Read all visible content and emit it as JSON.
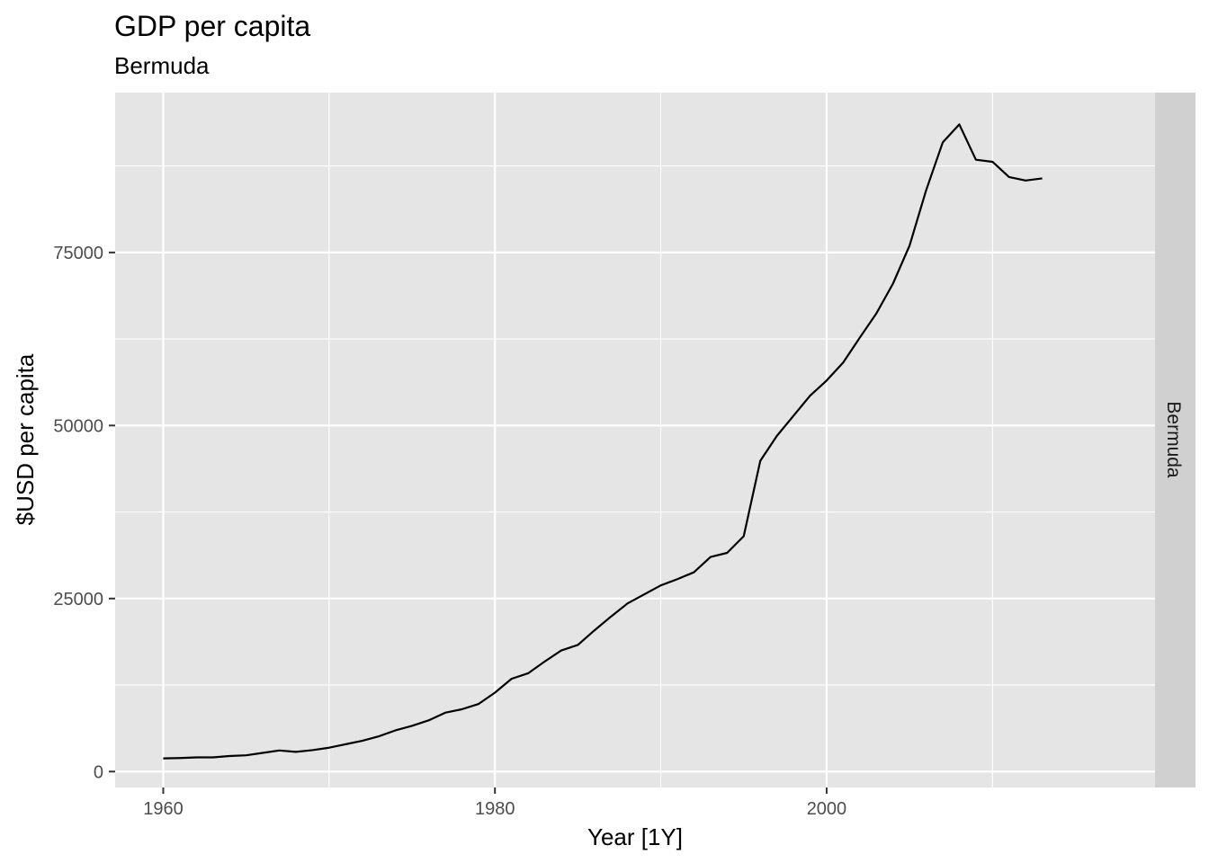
{
  "chart_data": {
    "type": "line",
    "title": "GDP per capita",
    "subtitle": "Bermuda",
    "xlabel": "Year [1Y]",
    "ylabel": "$USD per capita",
    "facet_label": "Bermuda",
    "xlim": [
      1957.1,
      2019.8
    ],
    "ylim": [
      -2300,
      98100
    ],
    "x_ticks": [
      1960,
      1980,
      2000
    ],
    "x_tick_labels": [
      "1960",
      "1980",
      "2000"
    ],
    "x_minor_ticks": [
      1970,
      1990,
      2010
    ],
    "y_ticks": [
      0,
      25000,
      50000,
      75000
    ],
    "y_tick_labels": [
      "0",
      "25000",
      "50000",
      "75000"
    ],
    "y_minor_ticks": [
      12500,
      37500,
      62500,
      87500
    ],
    "grid": true,
    "colors": {
      "panel_bg": "#e5e5e5",
      "grid": "#ffffff",
      "strip_bg": "#d0d0d0",
      "line": "#000000",
      "tick": "#333333"
    },
    "series": [
      {
        "x": [
          1960,
          1961,
          1962,
          1963,
          1964,
          1965,
          1966,
          1967,
          1968,
          1969,
          1970,
          1971,
          1972,
          1973,
          1974,
          1975,
          1976,
          1977,
          1978,
          1979,
          1980,
          1981,
          1982,
          1983,
          1984,
          1985,
          1986,
          1987,
          1988,
          1989,
          1990,
          1991,
          1992,
          1993,
          1994,
          1995,
          1996,
          1997,
          1998,
          1999,
          2000,
          2001,
          2002,
          2003,
          2004,
          2005,
          2006,
          2007,
          2008,
          2009,
          2010,
          2011,
          2012,
          2013
        ],
        "values": [
          1900,
          1950,
          2050,
          2050,
          2250,
          2350,
          2700,
          3050,
          2850,
          3100,
          3450,
          3950,
          4450,
          5100,
          5950,
          6600,
          7400,
          8500,
          9000,
          9750,
          11400,
          13400,
          14200,
          15900,
          17500,
          18300,
          20400,
          22400,
          24300,
          25600,
          26900,
          27800,
          28800,
          31000,
          31600,
          34000,
          44900,
          48500,
          51400,
          54300,
          56500,
          59100,
          62700,
          66200,
          70500,
          76000,
          84000,
          90900,
          93500,
          88400,
          88100,
          85900,
          85400,
          85700
        ]
      }
    ]
  }
}
